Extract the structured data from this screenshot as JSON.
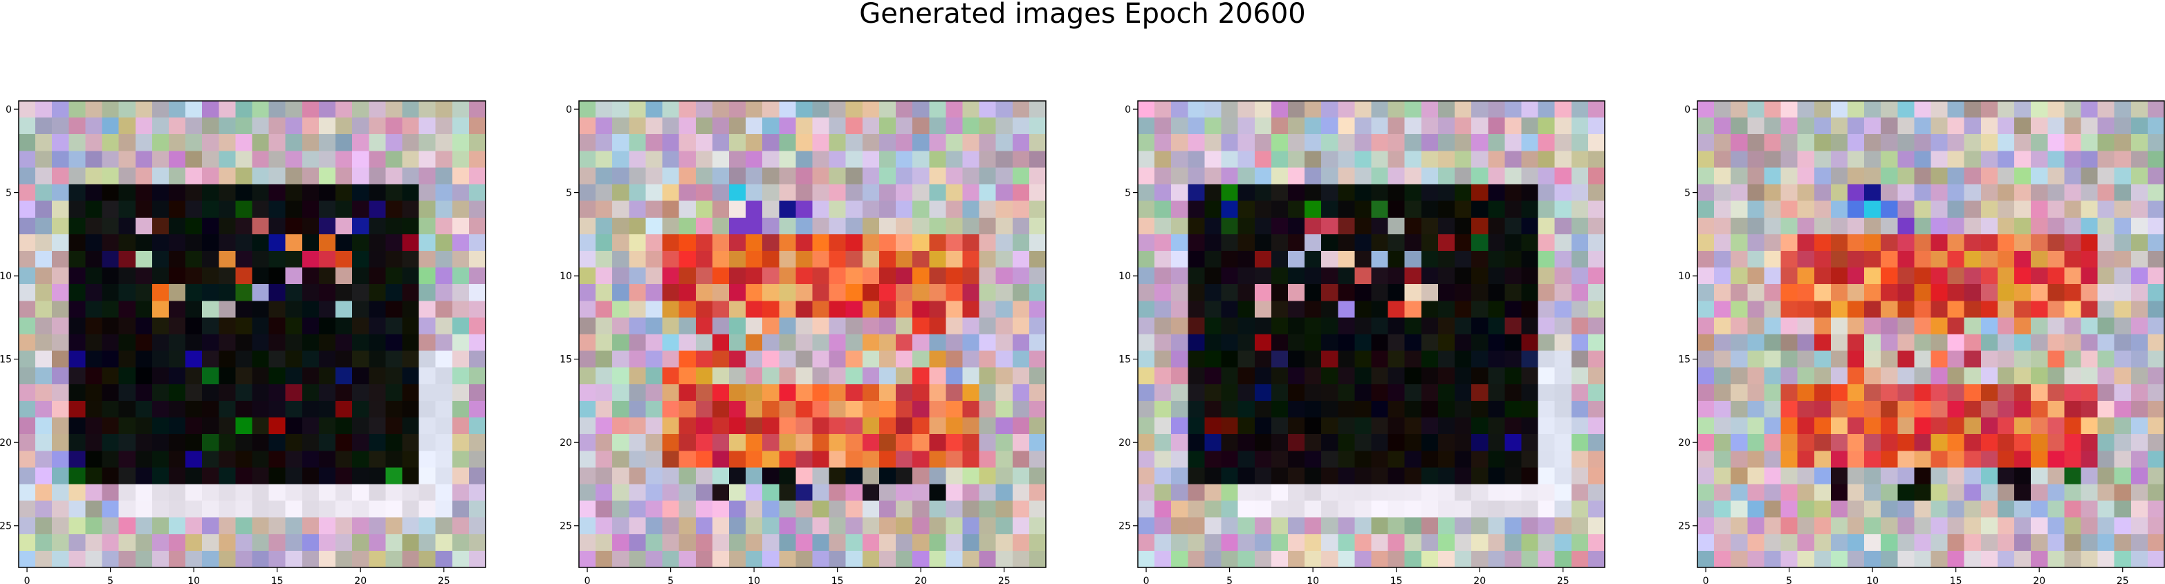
{
  "figure": {
    "title": "Generated images Epoch 20600"
  },
  "chart_data": [
    {
      "type": "heatmap",
      "variant": "pattern-dark-square",
      "seed": 11,
      "grid_size": [
        28,
        28
      ],
      "xlim": [
        -0.5,
        27.5
      ],
      "ylim": [
        27.5,
        -0.5
      ],
      "x_ticks": [
        0,
        5,
        10,
        15,
        20,
        25
      ],
      "y_ticks": [
        0,
        5,
        10,
        15,
        20,
        25
      ],
      "x_tick_labels": [
        "0",
        "5",
        "10",
        "15",
        "20",
        "25"
      ],
      "y_tick_labels": [
        "0",
        "5",
        "10",
        "15",
        "20",
        "25"
      ],
      "grid": false
    },
    {
      "type": "heatmap",
      "variant": "pattern-warm-band",
      "seed": 23,
      "grid_size": [
        28,
        28
      ],
      "xlim": [
        -0.5,
        27.5
      ],
      "ylim": [
        27.5,
        -0.5
      ],
      "x_ticks": [
        0,
        5,
        10,
        15,
        20,
        25
      ],
      "y_ticks": [
        0,
        5,
        10,
        15,
        20,
        25
      ],
      "x_tick_labels": [
        "0",
        "5",
        "10",
        "15",
        "20",
        "25"
      ],
      "y_tick_labels": [
        "0",
        "5",
        "10",
        "15",
        "20",
        "25"
      ],
      "grid": false
    },
    {
      "type": "heatmap",
      "variant": "pattern-dark-square",
      "seed": 37,
      "grid_size": [
        28,
        28
      ],
      "xlim": [
        -0.5,
        27.5
      ],
      "ylim": [
        27.5,
        -0.5
      ],
      "x_ticks": [
        0,
        5,
        10,
        15,
        20,
        25
      ],
      "y_ticks": [
        0,
        5,
        10,
        15,
        20,
        25
      ],
      "x_tick_labels": [
        "0",
        "5",
        "10",
        "15",
        "20",
        "25"
      ],
      "y_tick_labels": [
        "0",
        "5",
        "10",
        "15",
        "20",
        "25"
      ],
      "grid": false
    },
    {
      "type": "heatmap",
      "variant": "pattern-warm-band",
      "seed": 53,
      "grid_size": [
        28,
        28
      ],
      "xlim": [
        -0.5,
        27.5
      ],
      "ylim": [
        27.5,
        -0.5
      ],
      "x_ticks": [
        0,
        5,
        10,
        15,
        20,
        25
      ],
      "y_ticks": [
        0,
        5,
        10,
        15,
        20,
        25
      ],
      "x_tick_labels": [
        "0",
        "5",
        "10",
        "15",
        "20",
        "25"
      ],
      "y_tick_labels": [
        "0",
        "5",
        "10",
        "15",
        "20",
        "25"
      ],
      "grid": false
    }
  ]
}
